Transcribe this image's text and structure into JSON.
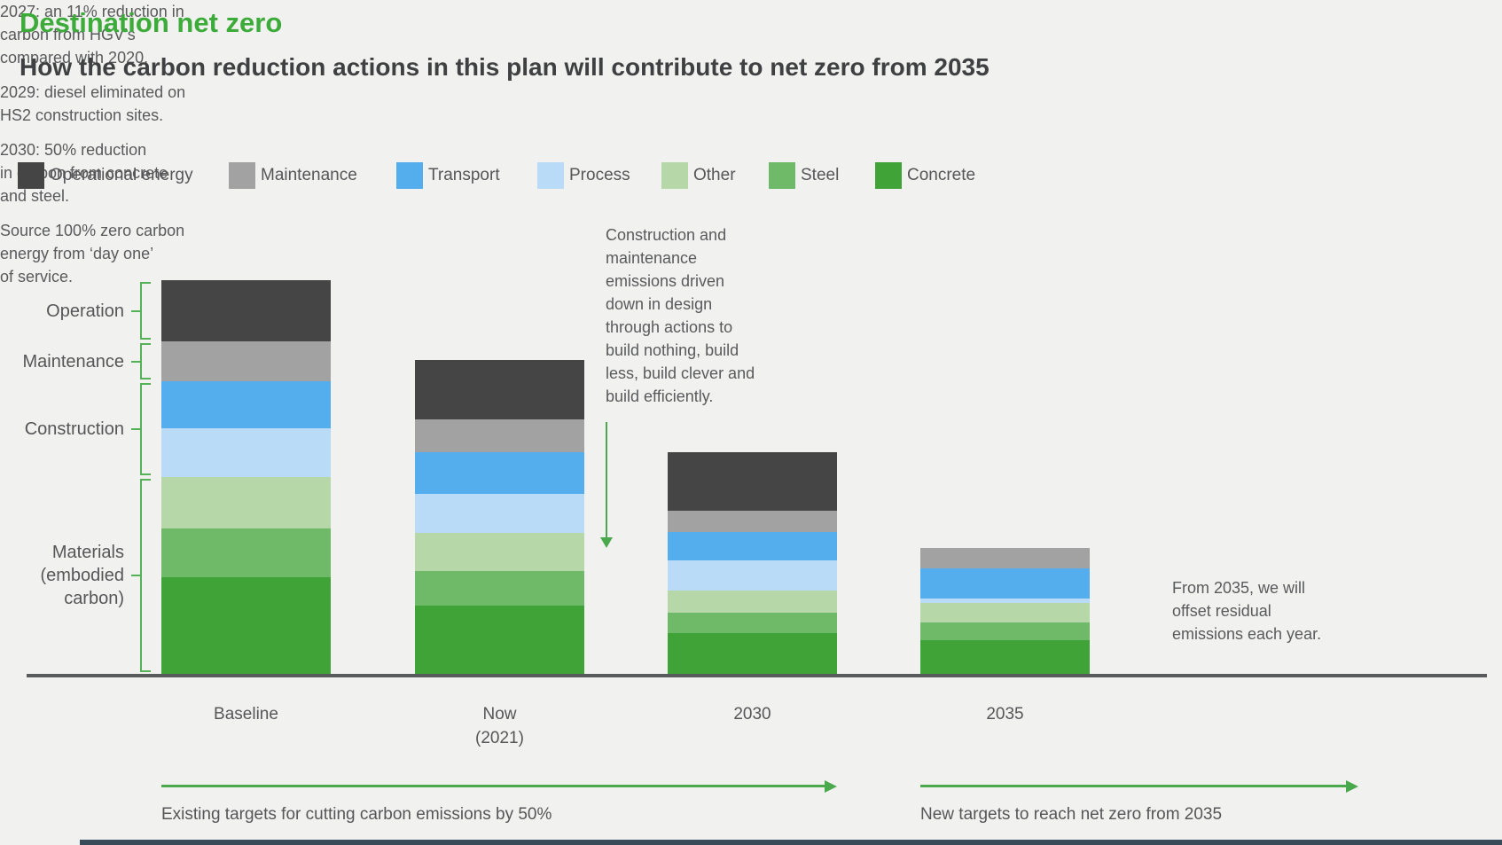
{
  "header": {
    "title": "Destination net zero",
    "subtitle": "How the carbon reduction actions in this plan will contribute to net zero from 2035"
  },
  "colors": {
    "title_green": "#3cab3a",
    "heading_dark": "#3f4041",
    "body_gray": "#595a5c",
    "axis_line": "#595a5c",
    "bracket_green": "#54b156",
    "arrow_green": "#4aa94d",
    "background": "#f1f1ef"
  },
  "legend": {
    "items": [
      {
        "label": "Operational energy",
        "color": "#454546"
      },
      {
        "label": "Maintenance",
        "color": "#a3a2a2"
      },
      {
        "label": "Transport",
        "color": "#54adec"
      },
      {
        "label": "Process",
        "color": "#b9dbf8"
      },
      {
        "label": "Other",
        "color": "#b6d8a8"
      },
      {
        "label": "Steel",
        "color": "#6eba68"
      },
      {
        "label": "Concrete",
        "color": "#3fa337"
      }
    ]
  },
  "chart_data": {
    "type": "bar",
    "stacked": true,
    "title": "Destination net zero",
    "subtitle": "How the carbon reduction actions in this plan will contribute to net zero from 2035",
    "categories": [
      "Baseline",
      "Now\n(2021)",
      "2030",
      "2035"
    ],
    "series": [
      {
        "name": "Operational energy",
        "color": "#454546",
        "values": [
          69,
          67,
          66,
          0
        ]
      },
      {
        "name": "Maintenance",
        "color": "#a3a2a2",
        "values": [
          45,
          37,
          24,
          23
        ]
      },
      {
        "name": "Transport",
        "color": "#54adec",
        "values": [
          53,
          47,
          32,
          34
        ]
      },
      {
        "name": "Process",
        "color": "#b9dbf8",
        "values": [
          55,
          44,
          34,
          5
        ]
      },
      {
        "name": "Other",
        "color": "#b6d8a8",
        "values": [
          58,
          43,
          25,
          22
        ]
      },
      {
        "name": "Steel",
        "color": "#6eba68",
        "values": [
          55,
          39,
          23,
          20
        ]
      },
      {
        "name": "Concrete",
        "color": "#3fa337",
        "values": [
          109,
          77,
          46,
          38
        ]
      }
    ],
    "value_units": "relative emissions (no numeric axis shown; values are proportional heights, Baseline total = 444)",
    "totals": [
      444,
      354,
      250,
      142
    ],
    "legend_position": "top",
    "grid": false,
    "y_axis_groups": [
      {
        "label": "Operation",
        "series": [
          0
        ]
      },
      {
        "label": "Maintenance",
        "series": [
          1
        ]
      },
      {
        "label": "Construction",
        "series": [
          2,
          3
        ]
      },
      {
        "label": "Materials\n(embodied\ncarbon)",
        "series": [
          4,
          5,
          6
        ]
      }
    ]
  },
  "annotations": {
    "construction_note": "Construction and\nmaintenance\nemissions driven\ndown in design\nthrough actions to\nbuild nothing, build\nless, build clever and\nbuild efficiently.",
    "milestones": [
      "2027: an 11% reduction in\ncarbon from HGV’s\ncompared with 2020.",
      "2029: diesel eliminated on\nHS2 construction sites.",
      "2030: 50% reduction\nin carbon from concrete\nand steel.",
      "Source 100% zero carbon\nenergy from ‘day one’\nof service."
    ],
    "offset_note": "From 2035, we will\noffset residual\nemissions each year."
  },
  "footer": {
    "left_caption": "Existing targets for cutting carbon emissions by 50%",
    "right_caption": "New targets to reach net zero from 2035"
  }
}
